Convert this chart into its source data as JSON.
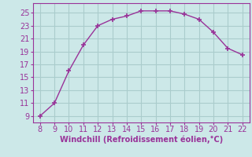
{
  "x": [
    8,
    9,
    10,
    11,
    12,
    13,
    14,
    15,
    16,
    17,
    18,
    19,
    20,
    21,
    22
  ],
  "y": [
    9,
    11,
    16,
    20,
    23,
    24,
    24.5,
    25.3,
    25.3,
    25.3,
    24.8,
    24,
    22,
    19.5,
    18.5
  ],
  "line_color": "#993399",
  "marker": "+",
  "marker_color": "#993399",
  "background_color": "#cce8e8",
  "grid_color": "#aacccc",
  "xlabel": "Windchill (Refroidissement éolien,°C)",
  "xlabel_color": "#993399",
  "tick_color": "#993399",
  "spine_color": "#993399",
  "xlim": [
    7.5,
    22.5
  ],
  "ylim": [
    8.0,
    26.5
  ],
  "xticks": [
    8,
    9,
    10,
    11,
    12,
    13,
    14,
    15,
    16,
    17,
    18,
    19,
    20,
    21,
    22
  ],
  "yticks": [
    9,
    11,
    13,
    15,
    17,
    19,
    21,
    23,
    25
  ],
  "tick_fontsize": 7,
  "xlabel_fontsize": 7,
  "marker_size": 4,
  "line_width": 1.0
}
